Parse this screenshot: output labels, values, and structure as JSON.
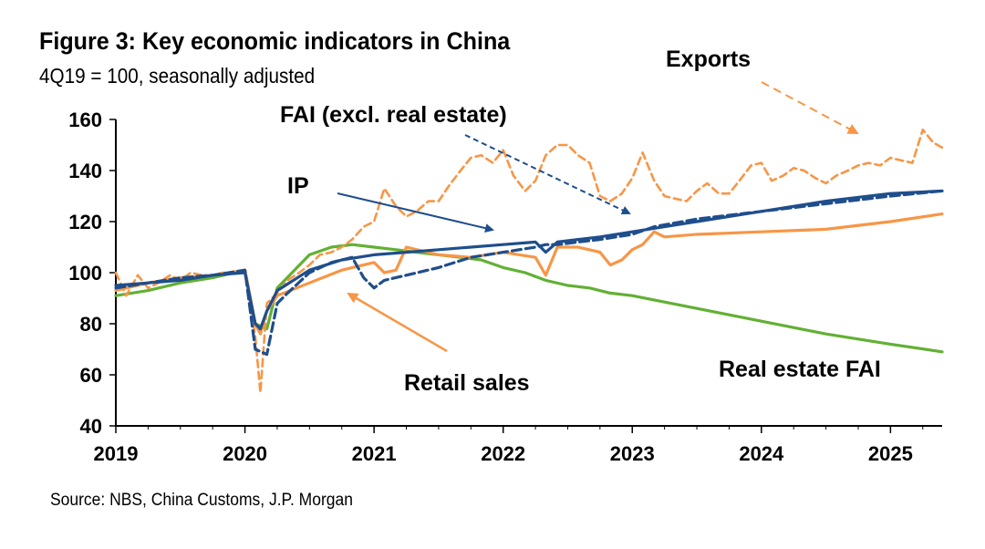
{
  "chart_data": {
    "type": "line",
    "title": "Figure 3: Key economic indicators in China",
    "subtitle": "4Q19 = 100, seasonally adjusted",
    "source": "Source: NBS, China Customs, J.P. Morgan",
    "xlabel": "",
    "ylabel": "",
    "xlim": [
      2019.0,
      2025.4
    ],
    "ylim": [
      40,
      160
    ],
    "xticks": [
      "2019",
      "2020",
      "2021",
      "2022",
      "2023",
      "2024",
      "2025"
    ],
    "yticks": [
      "40",
      "60",
      "80",
      "100",
      "120",
      "140",
      "160"
    ],
    "grid": false,
    "legend": "none (direct labels with arrows)",
    "series": [
      {
        "name": "Exports",
        "color": "#F79646",
        "style": "dashed",
        "x": [
          2019.0,
          2019.08,
          2019.17,
          2019.25,
          2019.33,
          2019.42,
          2019.5,
          2019.58,
          2019.67,
          2019.75,
          2019.83,
          2019.92,
          2020.0,
          2020.08,
          2020.12,
          2020.17,
          2020.25,
          2020.33,
          2020.42,
          2020.5,
          2020.58,
          2020.67,
          2020.75,
          2020.83,
          2020.92,
          2021.0,
          2021.08,
          2021.17,
          2021.25,
          2021.33,
          2021.42,
          2021.5,
          2021.58,
          2021.67,
          2021.75,
          2021.83,
          2021.92,
          2022.0,
          2022.08,
          2022.17,
          2022.25,
          2022.33,
          2022.42,
          2022.5,
          2022.58,
          2022.67,
          2022.75,
          2022.83,
          2022.92,
          2023.0,
          2023.08,
          2023.17,
          2023.25,
          2023.33,
          2023.42,
          2023.5,
          2023.58,
          2023.67,
          2023.75,
          2023.83,
          2023.92,
          2024.0,
          2024.08,
          2024.17,
          2024.25,
          2024.33,
          2024.42,
          2024.5,
          2024.58,
          2024.67,
          2024.75,
          2024.83,
          2024.92,
          2025.0,
          2025.08,
          2025.17,
          2025.25,
          2025.33,
          2025.4
        ],
        "values": [
          100,
          91,
          99,
          94,
          96,
          99,
          97,
          100,
          99,
          99,
          100,
          100,
          101,
          75,
          53,
          88,
          92,
          97,
          100,
          103,
          107,
          108,
          110,
          113,
          118,
          120,
          133,
          126,
          122,
          124,
          128,
          128,
          134,
          140,
          145,
          146,
          143,
          148,
          138,
          132,
          136,
          146,
          150,
          150,
          146,
          143,
          130,
          128,
          131,
          137,
          147,
          136,
          130,
          129,
          128,
          132,
          135,
          131,
          131,
          136,
          142,
          143,
          136,
          138,
          141,
          140,
          137,
          135,
          138,
          140,
          142,
          143,
          142,
          145,
          144,
          143,
          156,
          151,
          149
        ]
      },
      {
        "name": "FAI (excl. real estate)",
        "color": "#1F4E8C",
        "style": "dashed",
        "x": [
          2019.0,
          2019.25,
          2019.5,
          2019.75,
          2020.0,
          2020.08,
          2020.17,
          2020.25,
          2020.33,
          2020.5,
          2020.67,
          2020.83,
          2020.92,
          2021.0,
          2021.08,
          2021.25,
          2021.5,
          2021.75,
          2022.0,
          2022.25,
          2022.33,
          2022.42,
          2022.58,
          2022.75,
          2023.0,
          2023.17,
          2023.5,
          2024.0,
          2024.5,
          2025.0,
          2025.4
        ],
        "values": [
          94,
          96,
          98,
          99,
          101,
          70,
          68,
          88,
          92,
          100,
          104,
          106,
          98,
          94,
          97,
          99,
          102,
          106,
          108,
          110,
          111,
          111,
          112,
          113,
          115,
          118,
          121,
          124,
          127,
          130,
          132
        ]
      },
      {
        "name": "IP",
        "color": "#1F4E8C",
        "style": "solid",
        "x": [
          2019.0,
          2019.25,
          2019.5,
          2019.75,
          2020.0,
          2020.08,
          2020.12,
          2020.17,
          2020.25,
          2020.5,
          2020.75,
          2021.0,
          2021.25,
          2021.5,
          2021.75,
          2022.0,
          2022.25,
          2022.33,
          2022.42,
          2022.58,
          2022.75,
          2023.0,
          2023.5,
          2024.0,
          2024.5,
          2025.0,
          2025.4
        ],
        "values": [
          95,
          96,
          97,
          99,
          100,
          80,
          78,
          85,
          93,
          101,
          105,
          107,
          108,
          109,
          110,
          111,
          112,
          108,
          112,
          113,
          114,
          116,
          120,
          124,
          128,
          131,
          132
        ]
      },
      {
        "name": "Retail sales",
        "color": "#F79646",
        "style": "solid",
        "x": [
          2019.0,
          2019.25,
          2019.5,
          2019.75,
          2020.0,
          2020.08,
          2020.12,
          2020.17,
          2020.25,
          2020.5,
          2020.75,
          2021.0,
          2021.08,
          2021.17,
          2021.25,
          2021.5,
          2021.75,
          2022.0,
          2022.25,
          2022.33,
          2022.42,
          2022.58,
          2022.75,
          2022.83,
          2022.92,
          2023.0,
          2023.08,
          2023.17,
          2023.25,
          2023.5,
          2024.0,
          2024.5,
          2025.0,
          2025.4
        ],
        "values": [
          93,
          96,
          98,
          99,
          101,
          80,
          76,
          85,
          91,
          96,
          101,
          104,
          100,
          101,
          110,
          107,
          106,
          108,
          106,
          99,
          110,
          110,
          108,
          103,
          105,
          109,
          111,
          116,
          114,
          115,
          116,
          117,
          120,
          123
        ]
      },
      {
        "name": "Real estate FAI",
        "color": "#62B034",
        "style": "solid",
        "x": [
          2019.0,
          2019.25,
          2019.5,
          2019.75,
          2020.0,
          2020.08,
          2020.17,
          2020.25,
          2020.5,
          2020.67,
          2020.83,
          2021.0,
          2021.17,
          2021.33,
          2021.5,
          2021.67,
          2021.83,
          2022.0,
          2022.17,
          2022.33,
          2022.5,
          2022.67,
          2022.83,
          2023.0,
          2023.5,
          2024.0,
          2024.5,
          2025.0,
          2025.4
        ],
        "values": [
          91,
          93,
          96,
          98,
          101,
          80,
          78,
          94,
          107,
          110,
          111,
          110,
          109,
          108,
          107,
          106,
          105,
          102,
          100,
          97,
          95,
          94,
          92,
          91,
          86,
          81,
          76,
          72,
          69
        ]
      }
    ],
    "annotations": [
      {
        "text": "Exports"
      },
      {
        "text": "FAI (excl. real estate)"
      },
      {
        "text": "IP"
      },
      {
        "text": "Retail sales"
      },
      {
        "text": "Real estate FAI"
      }
    ]
  }
}
